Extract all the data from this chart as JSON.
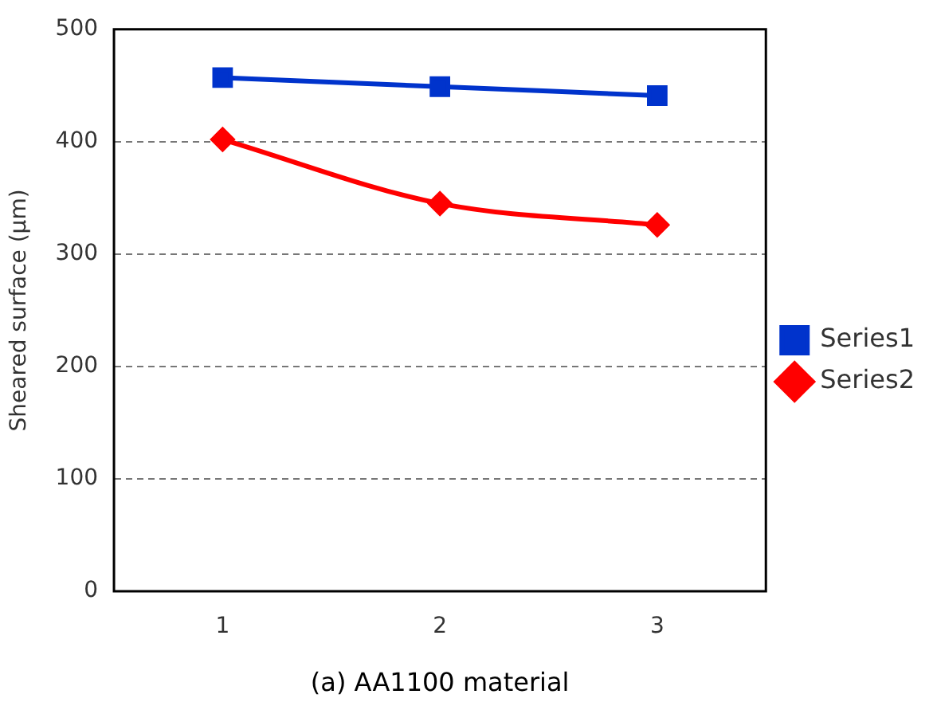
{
  "chart_data": {
    "type": "line",
    "xlabel": "(a) AA1100 material",
    "ylabel": "Sheared surface (µm)",
    "categories": [
      "1",
      "2",
      "3"
    ],
    "series": [
      {
        "name": "Series1",
        "color": "#0033cc",
        "marker": "square",
        "values": [
          457,
          449,
          441
        ]
      },
      {
        "name": "Series2",
        "color": "#ff0000",
        "marker": "diamond",
        "values": [
          402,
          345,
          326
        ]
      }
    ],
    "ylim": [
      0,
      500
    ],
    "yticks": [
      0,
      100,
      200,
      300,
      400,
      500
    ],
    "grid": "y",
    "legend": "right"
  }
}
